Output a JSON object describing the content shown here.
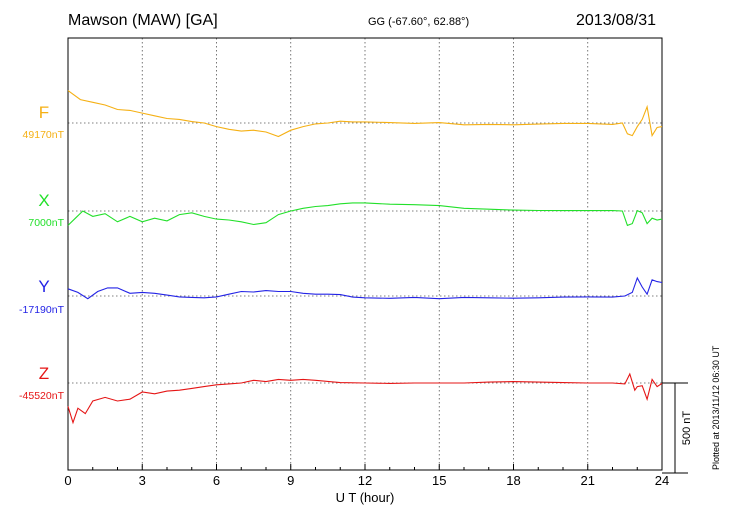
{
  "header": {
    "title": "Mawson (MAW)  [GA]",
    "coords": "GG (-67.60°,  62.88°)",
    "date": "2013/08/31",
    "plotted": "Plotted at 2013/11/12 06:30 UT"
  },
  "chart_data": {
    "type": "line",
    "xlabel": "U T (hour)",
    "xlim": [
      0,
      24
    ],
    "xticks": [
      "0",
      "3",
      "6",
      "9",
      "12",
      "15",
      "18",
      "21",
      "24"
    ],
    "grid": true,
    "scale_bar": {
      "label": "500 nT",
      "value_nT": 500
    },
    "series": [
      {
        "name": "F",
        "baseline_label": "49170nT",
        "baseline": 49170,
        "color": "#f5b014",
        "x": [
          0,
          0.5,
          1,
          1.5,
          2,
          2.5,
          3,
          3.5,
          4,
          4.5,
          5,
          5.5,
          6,
          6.5,
          7,
          7.5,
          8,
          8.5,
          9,
          9.5,
          10,
          10.5,
          11,
          11.5,
          12,
          13,
          14,
          15,
          16,
          17,
          18,
          19,
          20,
          21,
          22,
          22.4,
          22.6,
          22.8,
          23,
          23.2,
          23.4,
          23.6,
          23.8,
          24
        ],
        "y": [
          49350,
          49300,
          49285,
          49270,
          49245,
          49240,
          49225,
          49210,
          49195,
          49190,
          49178,
          49170,
          49150,
          49135,
          49125,
          49130,
          49120,
          49095,
          49130,
          49150,
          49165,
          49170,
          49180,
          49176,
          49176,
          49172,
          49168,
          49172,
          49160,
          49162,
          49160,
          49164,
          49168,
          49168,
          49162,
          49170,
          49110,
          49100,
          49150,
          49190,
          49260,
          49100,
          49145,
          49150
        ]
      },
      {
        "name": "X",
        "baseline_label": "7000nT",
        "baseline": 7000,
        "color": "#22e02a",
        "x": [
          0,
          0.3,
          0.6,
          1,
          1.5,
          2,
          2.5,
          3,
          3.5,
          4,
          4.5,
          5,
          5.5,
          6,
          6.5,
          7,
          7.5,
          8,
          8.5,
          9,
          9.5,
          10,
          10.5,
          11,
          11.5,
          12,
          13,
          14,
          15,
          16,
          17,
          18,
          19,
          20,
          21,
          22,
          22.4,
          22.6,
          22.8,
          23,
          23.2,
          23.4,
          23.6,
          23.8,
          24
        ],
        "y": [
          6920,
          6960,
          7000,
          6970,
          6985,
          6940,
          6970,
          6940,
          6960,
          6945,
          6980,
          6990,
          6970,
          6955,
          6950,
          6940,
          6925,
          6935,
          6980,
          7000,
          7015,
          7025,
          7030,
          7040,
          7045,
          7045,
          7038,
          7035,
          7030,
          7015,
          7010,
          7005,
          7003,
          7002,
          7002,
          7002,
          7000,
          6920,
          6930,
          7002,
          6990,
          6930,
          6960,
          6950,
          6955
        ]
      },
      {
        "name": "Y",
        "baseline_label": "-17190nT",
        "baseline": -17190,
        "color": "#2323e6",
        "x": [
          0,
          0.4,
          0.8,
          1.2,
          1.6,
          2,
          2.5,
          3,
          3.5,
          4,
          4.5,
          5,
          5.5,
          6,
          6.5,
          7,
          7.5,
          8,
          8.5,
          9,
          9.5,
          10,
          10.5,
          11,
          11.5,
          12,
          13,
          14,
          15,
          16,
          17,
          18,
          19,
          20,
          21,
          22,
          22.5,
          22.8,
          23,
          23.2,
          23.4,
          23.6,
          23.8,
          24
        ],
        "y": [
          -17150,
          -17170,
          -17205,
          -17165,
          -17145,
          -17145,
          -17175,
          -17170,
          -17175,
          -17185,
          -17195,
          -17198,
          -17200,
          -17195,
          -17180,
          -17165,
          -17168,
          -17160,
          -17165,
          -17165,
          -17175,
          -17180,
          -17180,
          -17182,
          -17196,
          -17200,
          -17203,
          -17198,
          -17205,
          -17198,
          -17200,
          -17202,
          -17200,
          -17196,
          -17195,
          -17196,
          -17190,
          -17170,
          -17090,
          -17140,
          -17180,
          -17100,
          -17110,
          -17115
        ]
      },
      {
        "name": "Z",
        "baseline_label": "-45520nT",
        "baseline": -45520,
        "color": "#e51515",
        "x": [
          0,
          0.2,
          0.4,
          0.7,
          1,
          1.5,
          2,
          2.5,
          3,
          3.5,
          4,
          4.5,
          5,
          5.5,
          6,
          6.5,
          7,
          7.5,
          8,
          8.5,
          9,
          9.5,
          10,
          11,
          12,
          13,
          14,
          15,
          16,
          17,
          18,
          19,
          20,
          21,
          22,
          22.5,
          22.7,
          22.9,
          23,
          23.2,
          23.4,
          23.6,
          23.8,
          24
        ],
        "y": [
          -45650,
          -45740,
          -45660,
          -45690,
          -45620,
          -45600,
          -45620,
          -45610,
          -45570,
          -45580,
          -45565,
          -45560,
          -45550,
          -45540,
          -45530,
          -45525,
          -45520,
          -45505,
          -45512,
          -45500,
          -45505,
          -45500,
          -45505,
          -45518,
          -45520,
          -45522,
          -45520,
          -45520,
          -45520,
          -45515,
          -45512,
          -45515,
          -45518,
          -45520,
          -45520,
          -45525,
          -45470,
          -45560,
          -45540,
          -45535,
          -45610,
          -45500,
          -45540,
          -45522
        ]
      }
    ]
  }
}
